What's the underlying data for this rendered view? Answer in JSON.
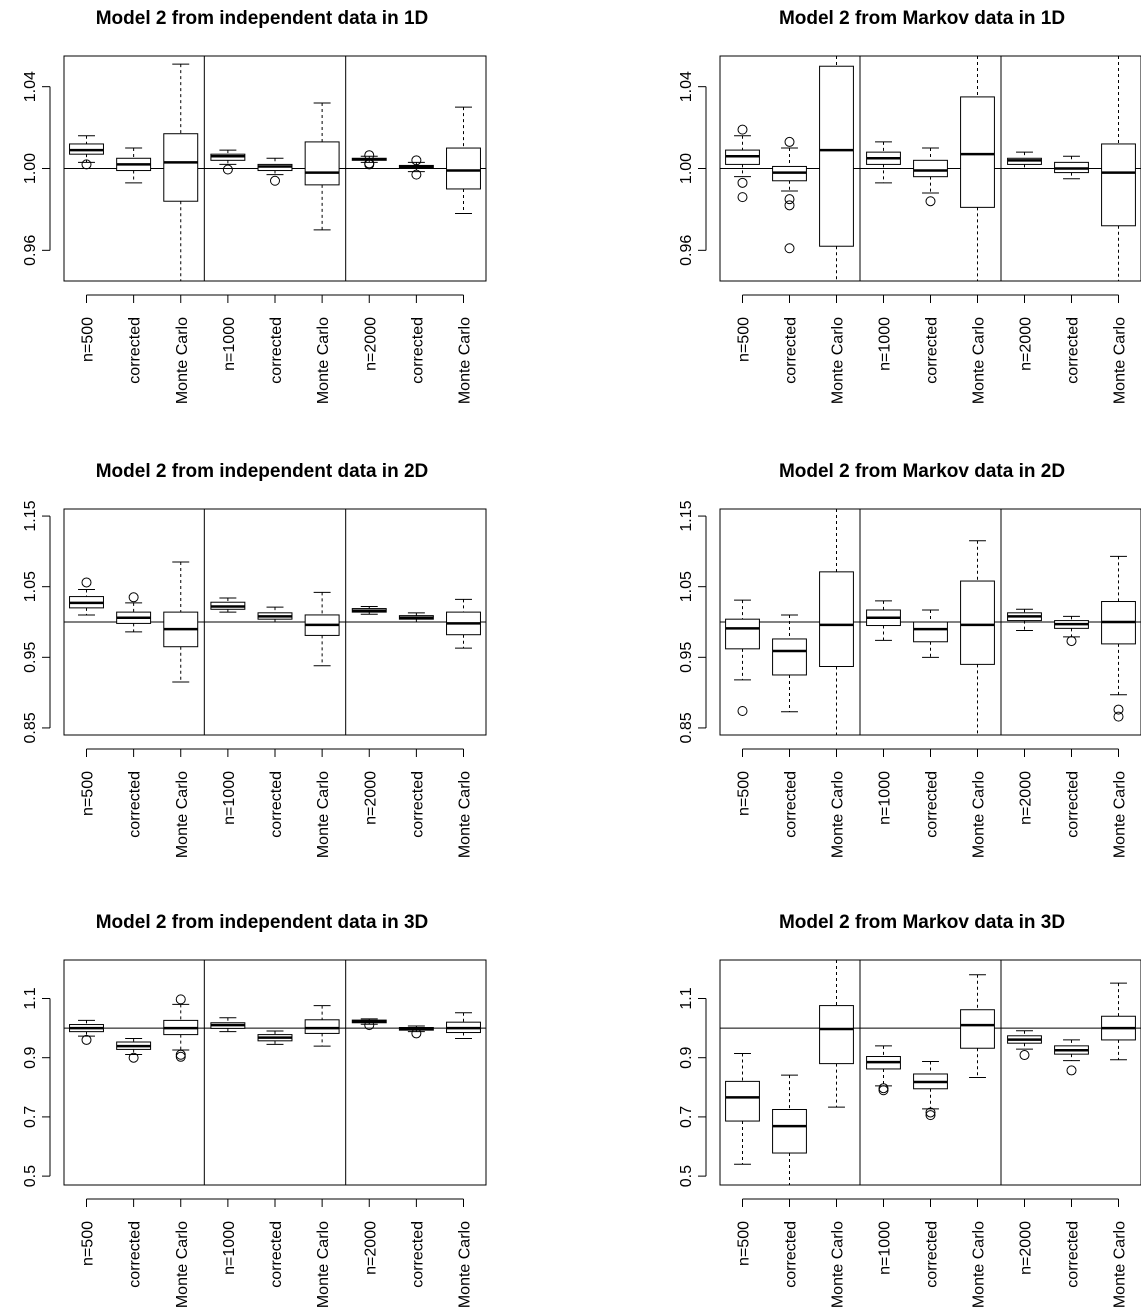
{
  "chart_data": [
    {
      "type": "box",
      "title": "Model 2 from independent data in 1D",
      "categories": [
        "n=500",
        "corrected",
        "Monte Carlo",
        "n=1000",
        "corrected",
        "Monte Carlo",
        "n=2000",
        "corrected",
        "Monte Carlo"
      ],
      "ylim": [
        0.945,
        1.055
      ],
      "yticks": [
        0.96,
        1.0,
        1.04
      ],
      "ytick_labels": [
        "0.96",
        "1.00",
        "1.04"
      ],
      "reference_line": 1.0,
      "boxes": [
        {
          "lo": 1.003,
          "q1": 1.007,
          "median": 1.009,
          "q3": 1.012,
          "hi": 1.016,
          "outliers": [
            1.002
          ]
        },
        {
          "lo": 0.993,
          "q1": 0.999,
          "median": 1.002,
          "q3": 1.005,
          "hi": 1.01,
          "outliers": []
        },
        {
          "lo": 0.945,
          "q1": 0.984,
          "median": 1.003,
          "q3": 1.017,
          "hi": 1.051,
          "outliers": []
        },
        {
          "lo": 1.002,
          "q1": 1.004,
          "median": 1.006,
          "q3": 1.007,
          "hi": 1.009,
          "outliers": [
            0.9995
          ]
        },
        {
          "lo": 0.997,
          "q1": 0.999,
          "median": 1.001,
          "q3": 1.002,
          "hi": 1.005,
          "outliers": [
            0.994
          ]
        },
        {
          "lo": 0.97,
          "q1": 0.992,
          "median": 0.998,
          "q3": 1.013,
          "hi": 1.032,
          "outliers": []
        },
        {
          "lo": 1.003,
          "q1": 1.004,
          "median": 1.0045,
          "q3": 1.005,
          "hi": 1.006,
          "outliers": [
            1.0065,
            1.0025,
            1.002
          ]
        },
        {
          "lo": 0.9985,
          "q1": 1.0005,
          "median": 1.001,
          "q3": 1.0015,
          "hi": 1.003,
          "outliers": [
            1.004,
            0.997
          ]
        },
        {
          "lo": 0.978,
          "q1": 0.99,
          "median": 0.999,
          "q3": 1.01,
          "hi": 1.03,
          "outliers": []
        }
      ]
    },
    {
      "type": "box",
      "title": "Model 2 from Markov data in 1D",
      "categories": [
        "n=500",
        "corrected",
        "Monte Carlo",
        "n=1000",
        "corrected",
        "Monte Carlo",
        "n=2000",
        "corrected",
        "Monte Carlo"
      ],
      "ylim": [
        0.945,
        1.055
      ],
      "yticks": [
        0.96,
        1.0,
        1.04
      ],
      "ytick_labels": [
        "0.96",
        "1.00",
        "1.04"
      ],
      "reference_line": 1.0,
      "boxes": [
        {
          "lo": 0.996,
          "q1": 1.002,
          "median": 1.006,
          "q3": 1.009,
          "hi": 1.016,
          "outliers": [
            1.019,
            0.993,
            0.986
          ]
        },
        {
          "lo": 0.989,
          "q1": 0.994,
          "median": 0.998,
          "q3": 1.001,
          "hi": 1.01,
          "outliers": [
            1.013,
            0.985,
            0.982,
            0.961
          ]
        },
        {
          "lo": 0.945,
          "q1": 0.962,
          "median": 1.009,
          "q3": 1.05,
          "hi": 1.055,
          "outliers": []
        },
        {
          "lo": 0.993,
          "q1": 1.002,
          "median": 1.005,
          "q3": 1.008,
          "hi": 1.013,
          "outliers": []
        },
        {
          "lo": 0.988,
          "q1": 0.996,
          "median": 0.999,
          "q3": 1.004,
          "hi": 1.01,
          "outliers": [
            0.984
          ]
        },
        {
          "lo": 0.945,
          "q1": 0.981,
          "median": 1.007,
          "q3": 1.035,
          "hi": 1.055,
          "outliers": []
        },
        {
          "lo": 1.0,
          "q1": 1.002,
          "median": 1.004,
          "q3": 1.005,
          "hi": 1.008,
          "outliers": []
        },
        {
          "lo": 0.995,
          "q1": 0.998,
          "median": 1.0,
          "q3": 1.003,
          "hi": 1.006,
          "outliers": []
        },
        {
          "lo": 0.945,
          "q1": 0.972,
          "median": 0.998,
          "q3": 1.012,
          "hi": 1.055,
          "outliers": []
        }
      ]
    },
    {
      "type": "box",
      "title": "Model 2 from independent data in 2D",
      "categories": [
        "n=500",
        "corrected",
        "Monte Carlo",
        "n=1000",
        "corrected",
        "Monte Carlo",
        "n=2000",
        "corrected",
        "Monte Carlo"
      ],
      "ylim": [
        0.84,
        1.16
      ],
      "yticks": [
        0.85,
        0.95,
        1.05,
        1.15
      ],
      "ytick_labels": [
        "0.85",
        "0.95",
        "1.05",
        "1.15"
      ],
      "reference_line": 1.0,
      "boxes": [
        {
          "lo": 1.01,
          "q1": 1.02,
          "median": 1.027,
          "q3": 1.036,
          "hi": 1.046,
          "outliers": [
            1.056
          ]
        },
        {
          "lo": 0.986,
          "q1": 0.998,
          "median": 1.006,
          "q3": 1.014,
          "hi": 1.027,
          "outliers": [
            1.035
          ]
        },
        {
          "lo": 0.915,
          "q1": 0.965,
          "median": 0.99,
          "q3": 1.014,
          "hi": 1.085,
          "outliers": []
        },
        {
          "lo": 1.014,
          "q1": 1.018,
          "median": 1.022,
          "q3": 1.028,
          "hi": 1.034,
          "outliers": []
        },
        {
          "lo": 1.0,
          "q1": 1.004,
          "median": 1.008,
          "q3": 1.013,
          "hi": 1.021,
          "outliers": []
        },
        {
          "lo": 0.938,
          "q1": 0.981,
          "median": 0.996,
          "q3": 1.01,
          "hi": 1.042,
          "outliers": []
        },
        {
          "lo": 1.011,
          "q1": 1.014,
          "median": 1.016,
          "q3": 1.019,
          "hi": 1.022,
          "outliers": []
        },
        {
          "lo": 1.0,
          "q1": 1.004,
          "median": 1.006,
          "q3": 1.009,
          "hi": 1.013,
          "outliers": []
        },
        {
          "lo": 0.963,
          "q1": 0.982,
          "median": 0.998,
          "q3": 1.014,
          "hi": 1.032,
          "outliers": []
        }
      ]
    },
    {
      "type": "box",
      "title": "Model 2 from Markov data in 2D",
      "categories": [
        "n=500",
        "corrected",
        "Monte Carlo",
        "n=1000",
        "corrected",
        "Monte Carlo",
        "n=2000",
        "corrected",
        "Monte Carlo"
      ],
      "ylim": [
        0.84,
        1.16
      ],
      "yticks": [
        0.85,
        0.95,
        1.05,
        1.15
      ],
      "ytick_labels": [
        "0.85",
        "0.95",
        "1.05",
        "1.15"
      ],
      "reference_line": 1.0,
      "boxes": [
        {
          "lo": 0.918,
          "q1": 0.962,
          "median": 0.991,
          "q3": 1.004,
          "hi": 1.031,
          "outliers": [
            0.874
          ]
        },
        {
          "lo": 0.873,
          "q1": 0.925,
          "median": 0.959,
          "q3": 0.976,
          "hi": 1.01,
          "outliers": []
        },
        {
          "lo": 0.84,
          "q1": 0.937,
          "median": 0.996,
          "q3": 1.071,
          "hi": 1.16,
          "outliers": []
        },
        {
          "lo": 0.974,
          "q1": 0.995,
          "median": 1.006,
          "q3": 1.017,
          "hi": 1.03,
          "outliers": []
        },
        {
          "lo": 0.95,
          "q1": 0.972,
          "median": 0.99,
          "q3": 1.0,
          "hi": 1.017,
          "outliers": []
        },
        {
          "lo": 0.84,
          "q1": 0.94,
          "median": 0.996,
          "q3": 1.058,
          "hi": 1.115,
          "outliers": []
        },
        {
          "lo": 0.988,
          "q1": 1.002,
          "median": 1.008,
          "q3": 1.013,
          "hi": 1.018,
          "outliers": []
        },
        {
          "lo": 0.979,
          "q1": 0.991,
          "median": 0.997,
          "q3": 1.002,
          "hi": 1.008,
          "outliers": [
            0.973
          ]
        },
        {
          "lo": 0.897,
          "q1": 0.969,
          "median": 1.0,
          "q3": 1.029,
          "hi": 1.093,
          "outliers": [
            0.876,
            0.866
          ]
        }
      ]
    },
    {
      "type": "box",
      "title": "Model 2 from independent data in 3D",
      "categories": [
        "n=500",
        "corrected",
        "Monte Carlo",
        "n=1000",
        "corrected",
        "Monte Carlo",
        "n=2000",
        "corrected",
        "Monte Carlo"
      ],
      "ylim": [
        0.47,
        1.23
      ],
      "yticks": [
        0.5,
        0.7,
        0.9,
        1.1
      ],
      "ytick_labels": [
        "0.5",
        "0.7",
        "0.9",
        "1.1"
      ],
      "reference_line": 1.0,
      "boxes": [
        {
          "lo": 0.973,
          "q1": 0.988,
          "median": 1.0,
          "q3": 1.012,
          "hi": 1.026,
          "outliers": [
            0.96
          ]
        },
        {
          "lo": 0.911,
          "q1": 0.928,
          "median": 0.939,
          "q3": 0.953,
          "hi": 0.965,
          "outliers": [
            0.9
          ]
        },
        {
          "lo": 0.926,
          "q1": 0.978,
          "median": 1.0,
          "q3": 1.026,
          "hi": 1.08,
          "outliers": [
            1.097,
            0.91,
            0.903
          ]
        },
        {
          "lo": 0.988,
          "q1": 0.999,
          "median": 1.01,
          "q3": 1.018,
          "hi": 1.035,
          "outliers": []
        },
        {
          "lo": 0.945,
          "q1": 0.957,
          "median": 0.968,
          "q3": 0.978,
          "hi": 0.99,
          "outliers": []
        },
        {
          "lo": 0.939,
          "q1": 0.982,
          "median": 1.0,
          "q3": 1.028,
          "hi": 1.076,
          "outliers": []
        },
        {
          "lo": 1.013,
          "q1": 1.018,
          "median": 1.022,
          "q3": 1.027,
          "hi": 1.031,
          "outliers": [
            1.01
          ]
        },
        {
          "lo": 0.988,
          "q1": 0.993,
          "median": 0.997,
          "q3": 1.002,
          "hi": 1.007,
          "outliers": [
            0.982
          ]
        },
        {
          "lo": 0.965,
          "q1": 0.985,
          "median": 1.0,
          "q3": 1.02,
          "hi": 1.052,
          "outliers": []
        }
      ]
    },
    {
      "type": "box",
      "title": "Model 2 from Markov data in 3D",
      "categories": [
        "n=500",
        "corrected",
        "Monte Carlo",
        "n=1000",
        "corrected",
        "Monte Carlo",
        "n=2000",
        "corrected",
        "Monte Carlo"
      ],
      "ylim": [
        0.47,
        1.23
      ],
      "yticks": [
        0.5,
        0.7,
        0.9,
        1.1
      ],
      "ytick_labels": [
        "0.5",
        "0.7",
        "0.9",
        "1.1"
      ],
      "reference_line": 1.0,
      "boxes": [
        {
          "lo": 0.54,
          "q1": 0.686,
          "median": 0.766,
          "q3": 0.82,
          "hi": 0.914,
          "outliers": []
        },
        {
          "lo": 0.47,
          "q1": 0.578,
          "median": 0.669,
          "q3": 0.725,
          "hi": 0.841,
          "outliers": []
        },
        {
          "lo": 0.733,
          "q1": 0.88,
          "median": 0.997,
          "q3": 1.076,
          "hi": 1.23,
          "outliers": []
        },
        {
          "lo": 0.805,
          "q1": 0.862,
          "median": 0.885,
          "q3": 0.904,
          "hi": 0.94,
          "outliers": [
            0.797,
            0.79
          ]
        },
        {
          "lo": 0.727,
          "q1": 0.795,
          "median": 0.818,
          "q3": 0.845,
          "hi": 0.887,
          "outliers": [
            0.715,
            0.706
          ]
        },
        {
          "lo": 0.833,
          "q1": 0.932,
          "median": 1.01,
          "q3": 1.062,
          "hi": 1.18,
          "outliers": []
        },
        {
          "lo": 0.929,
          "q1": 0.949,
          "median": 0.961,
          "q3": 0.974,
          "hi": 0.991,
          "outliers": [
            0.909
          ]
        },
        {
          "lo": 0.89,
          "q1": 0.912,
          "median": 0.925,
          "q3": 0.94,
          "hi": 0.96,
          "outliers": [
            0.857
          ]
        },
        {
          "lo": 0.893,
          "q1": 0.96,
          "median": 1.0,
          "q3": 1.04,
          "hi": 1.152,
          "outliers": []
        }
      ]
    }
  ]
}
